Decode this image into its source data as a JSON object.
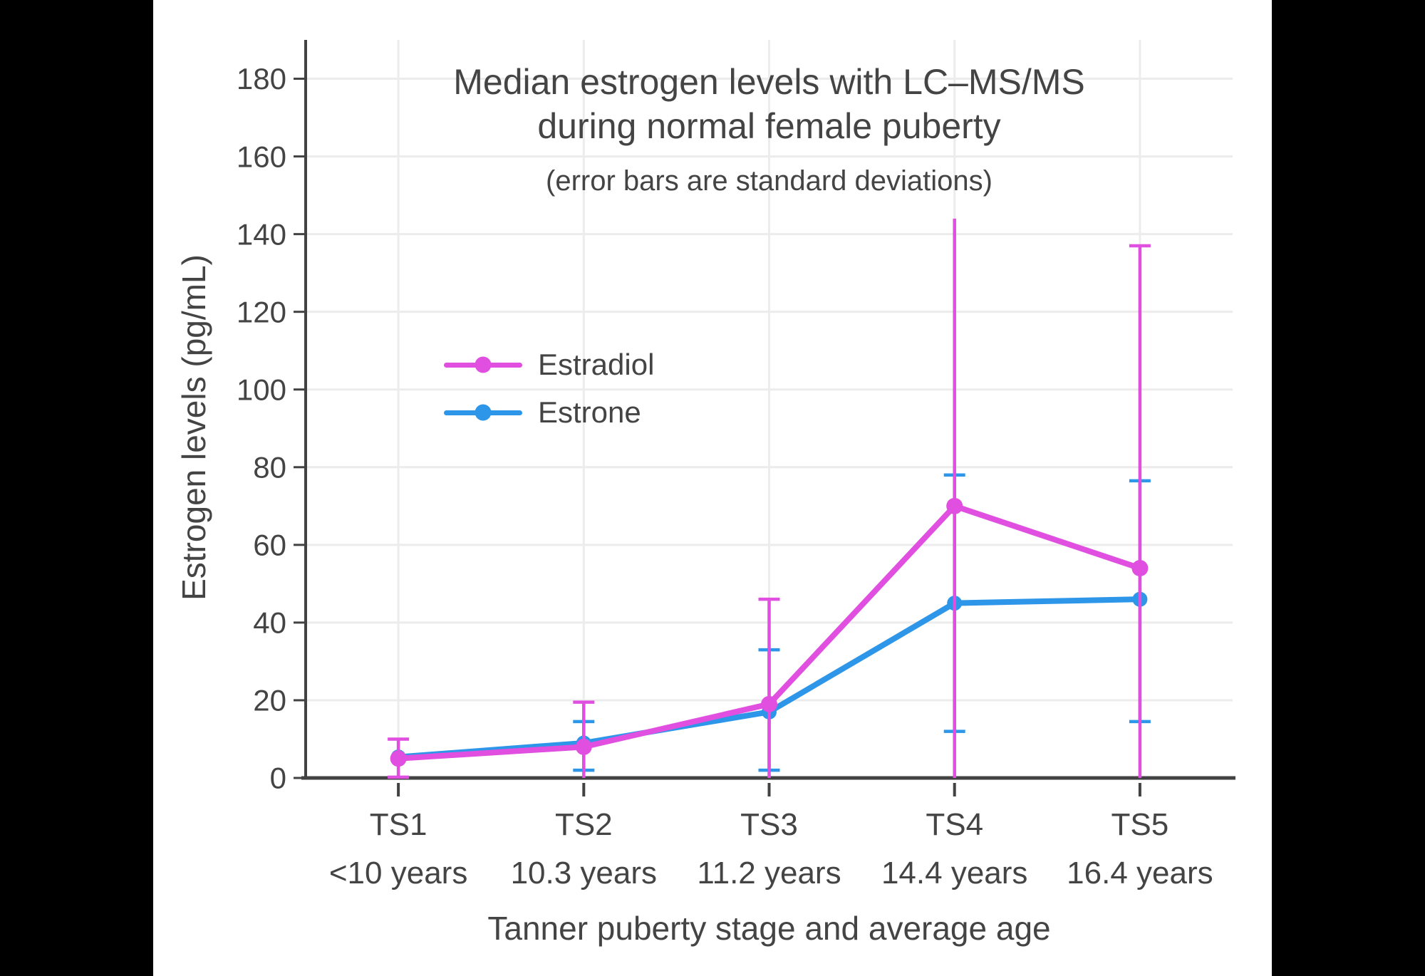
{
  "colors": {
    "background": "#000000",
    "chart_background": "#ffffff",
    "text": "#444444",
    "axis_line": "#424242",
    "gridline": "#ececec",
    "estradiol": "#E04FE0",
    "estrone": "#2E96E8"
  },
  "chart_data": {
    "type": "line",
    "title": "Median estrogen levels with LC–MS/MS during normal female puberty",
    "title_line1": "Median estrogen levels with LC–MS/MS",
    "title_line2": "during normal female puberty",
    "subtitle": "(error bars are standard deviations)",
    "xlabel": "Tanner puberty stage and average age",
    "ylabel": "Estrogen levels (pg/mL)",
    "categories": [
      "TS1",
      "TS2",
      "TS3",
      "TS4",
      "TS5"
    ],
    "category_ages": [
      "<10 years",
      "10.3 years",
      "11.2 years",
      "14.4 years",
      "16.4 years"
    ],
    "yticks": [
      0,
      20,
      40,
      60,
      80,
      100,
      120,
      140,
      160,
      180
    ],
    "ylim": [
      0,
      190
    ],
    "grid": true,
    "legend_position": "inside-upper-left",
    "error_bar_note": "error bars are standard deviations; magenta lower whiskers at TS2-TS5 are clipped at 0 with no cap; TS4 estradiol upper whisker has no cap",
    "series": [
      {
        "name": "Estrone",
        "color": "#2E96E8",
        "values": [
          5.4,
          9,
          17,
          45,
          46
        ],
        "error_upper": [
          null,
          14.5,
          33,
          78,
          76.5
        ],
        "error_lower": [
          null,
          2,
          2,
          12,
          14.5
        ],
        "cap_upper": [
          false,
          true,
          true,
          true,
          true
        ],
        "cap_lower": [
          false,
          true,
          true,
          true,
          true
        ]
      },
      {
        "name": "Estradiol",
        "color": "#E04FE0",
        "values": [
          5,
          8,
          19,
          70,
          54
        ],
        "error_upper": [
          10,
          19.5,
          46,
          144,
          137
        ],
        "error_lower": [
          0.2,
          0,
          0,
          0,
          0
        ],
        "cap_upper": [
          true,
          true,
          true,
          false,
          true
        ],
        "cap_lower": [
          true,
          false,
          false,
          false,
          false
        ]
      }
    ],
    "legend_order": [
      "Estradiol",
      "Estrone"
    ]
  }
}
